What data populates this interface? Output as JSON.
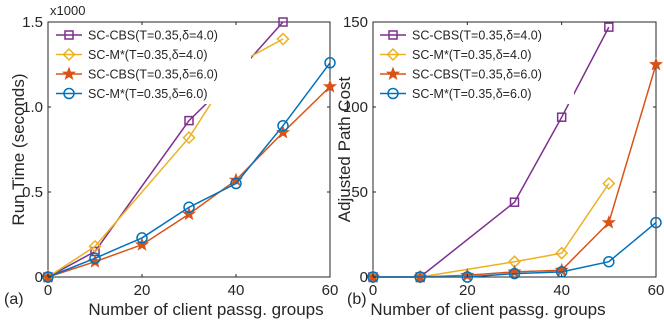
{
  "series_styles": [
    {
      "color": "#7E2F8E",
      "marker": "square"
    },
    {
      "color": "#EDB120",
      "marker": "diamond"
    },
    {
      "color": "#D95319",
      "marker": "star"
    },
    {
      "color": "#0072BD",
      "marker": "circle"
    }
  ],
  "chart_data": [
    {
      "type": "line",
      "panel_label": "(a)",
      "xlabel": "Number of client passg. groups",
      "ylabel": "Run Time (seconds)",
      "y_multiplier": "x1000",
      "xlim": [
        0,
        60
      ],
      "ylim": [
        0,
        1.5
      ],
      "xticks": [
        0,
        20,
        40,
        60
      ],
      "xtick_labels": [
        "0",
        "20",
        "40",
        "60"
      ],
      "yticks": [
        0,
        0.5,
        1.0,
        1.5
      ],
      "ytick_labels": [
        "0",
        "0.5",
        "1.0",
        "1.5"
      ],
      "grid": false,
      "legend_position": "top-left",
      "series": [
        {
          "name": "SC-CBS(T=0.35,δ=4.0)",
          "x": [
            0,
            10,
            30,
            40,
            50
          ],
          "values": [
            0,
            0.15,
            0.92,
            1.19,
            1.5
          ]
        },
        {
          "name": "SC-M*(T=0.35,δ=4.0)",
          "x": [
            0,
            10,
            30,
            40,
            50
          ],
          "values": [
            0,
            0.18,
            0.82,
            1.25,
            1.4
          ]
        },
        {
          "name": "SC-CBS(T=0.35,δ=6.0)",
          "x": [
            0,
            10,
            20,
            30,
            40,
            50,
            60
          ],
          "values": [
            0,
            0.09,
            0.19,
            0.37,
            0.57,
            0.85,
            1.12
          ]
        },
        {
          "name": "SC-M*(T=0.35,δ=6.0)",
          "x": [
            0,
            10,
            20,
            30,
            40,
            50,
            60
          ],
          "values": [
            0,
            0.11,
            0.23,
            0.41,
            0.55,
            0.89,
            1.26
          ]
        }
      ]
    },
    {
      "type": "line",
      "panel_label": "(b)",
      "xlabel": "Number of client passg. groups",
      "ylabel": "Adjusted Path Cost",
      "xlim": [
        0,
        60
      ],
      "ylim": [
        0,
        150
      ],
      "xticks": [
        0,
        20,
        40,
        60
      ],
      "xtick_labels": [
        "0",
        "20",
        "40",
        "60"
      ],
      "yticks": [
        0,
        50,
        100,
        150
      ],
      "ytick_labels": [
        "0",
        "50",
        "100",
        "150"
      ],
      "grid": false,
      "legend_position": "top-left",
      "series": [
        {
          "name": "SC-CBS(T=0.35,δ=4.0)",
          "x": [
            0,
            10,
            30,
            40,
            50
          ],
          "values": [
            0,
            0,
            44,
            94,
            147
          ]
        },
        {
          "name": "SC-M*(T=0.35,δ=4.0)",
          "x": [
            0,
            10,
            30,
            40,
            50
          ],
          "values": [
            0,
            0,
            9,
            14,
            55
          ]
        },
        {
          "name": "SC-CBS(T=0.35,δ=6.0)",
          "x": [
            0,
            10,
            20,
            30,
            40,
            50,
            60
          ],
          "values": [
            0,
            0,
            1,
            3,
            4,
            32,
            125
          ]
        },
        {
          "name": "SC-M*(T=0.35,δ=6.0)",
          "x": [
            0,
            10,
            20,
            30,
            40,
            50,
            60
          ],
          "values": [
            0,
            0,
            0,
            2,
            3,
            9,
            32
          ]
        }
      ]
    }
  ]
}
